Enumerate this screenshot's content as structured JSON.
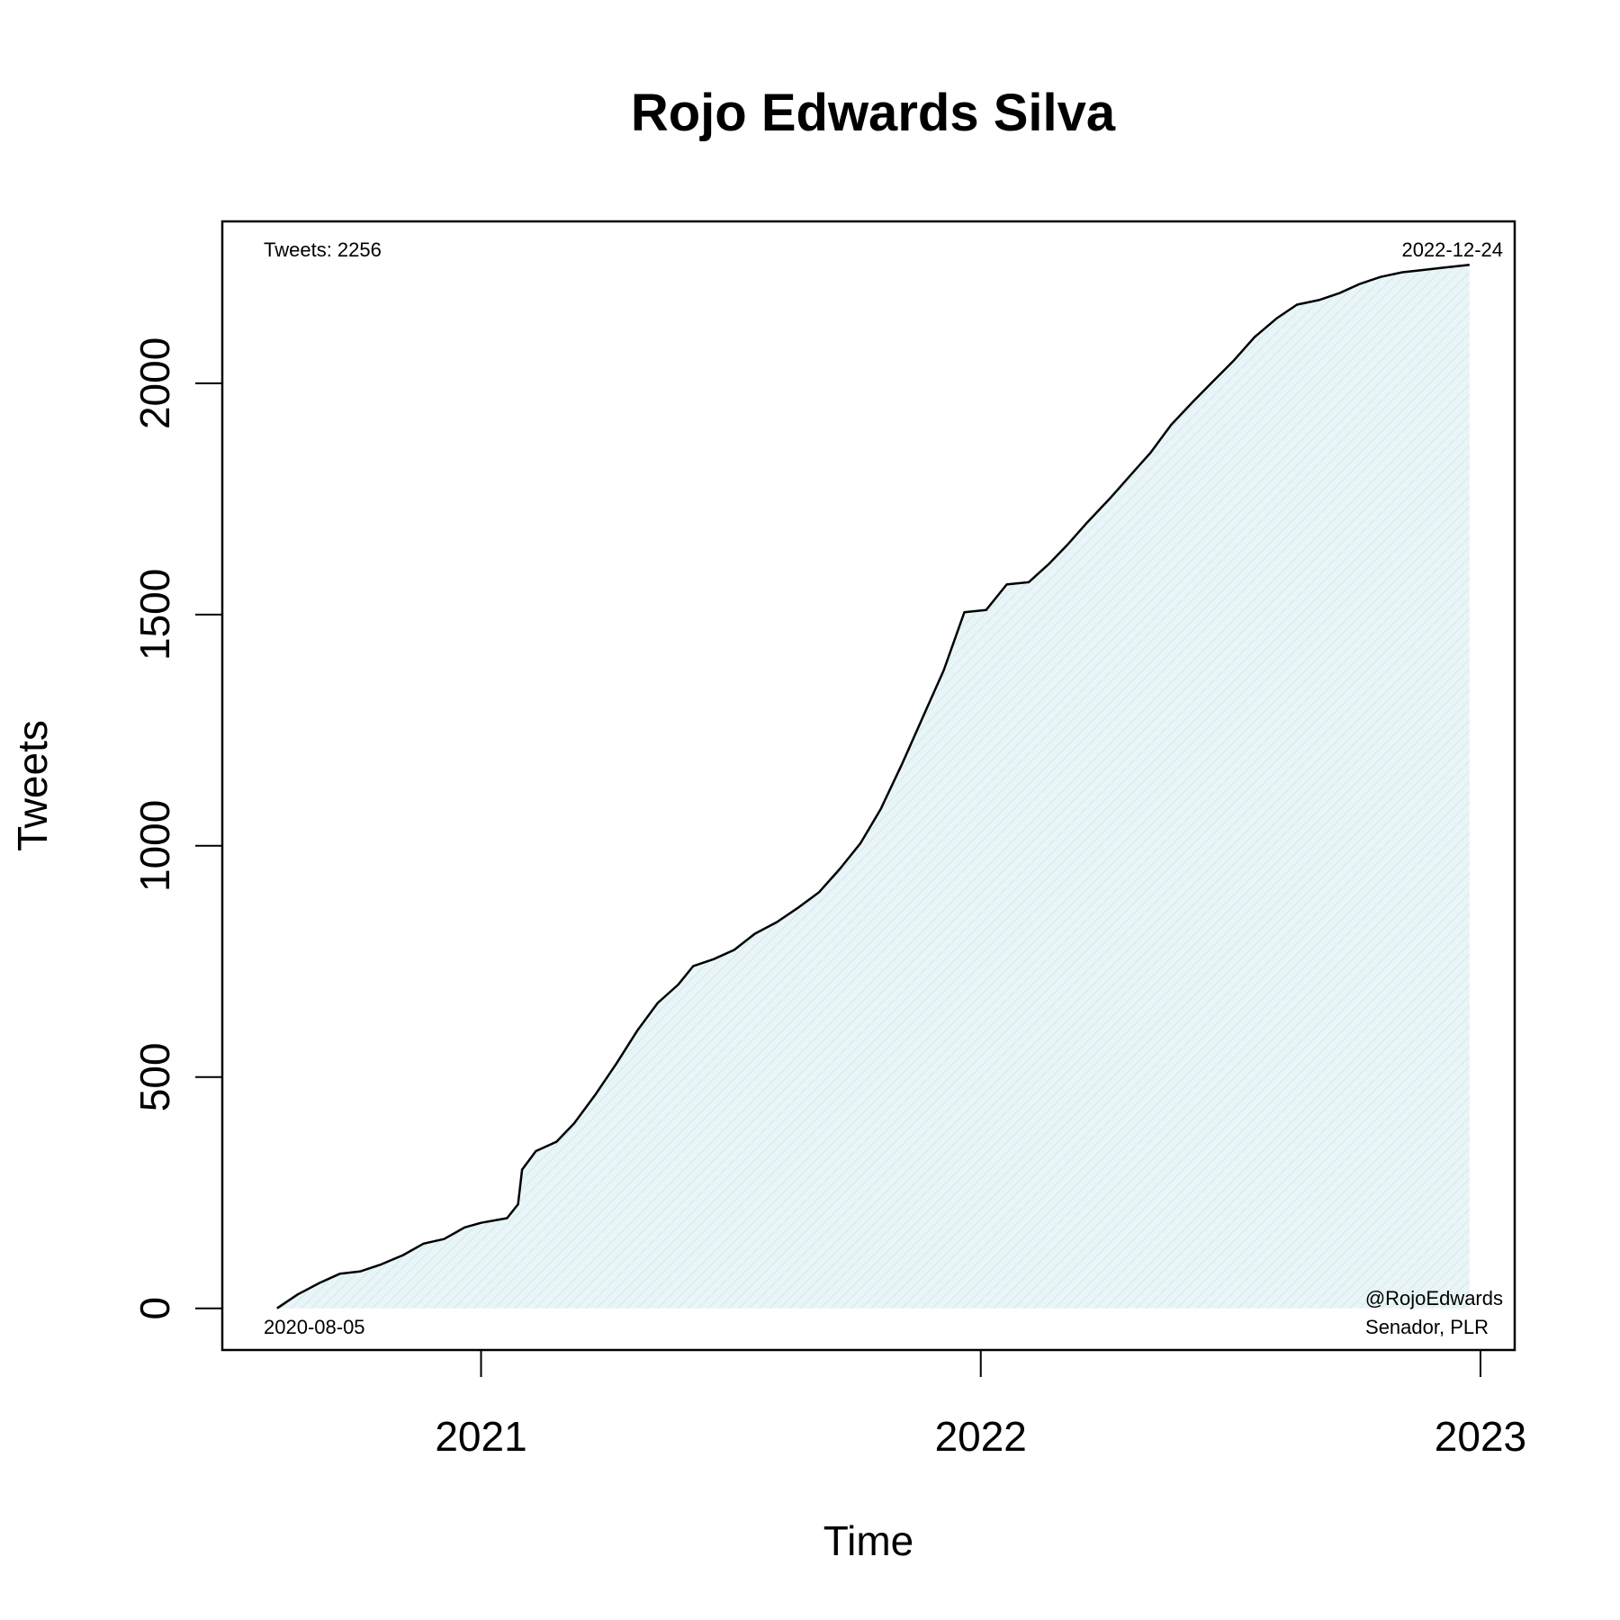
{
  "chart_data": {
    "type": "area",
    "title": "Rojo Edwards Silva",
    "xlabel": "Time",
    "ylabel": "Tweets",
    "xlim": [
      "2020-06-26",
      "2023-01-26"
    ],
    "ylim": [
      -90,
      2350
    ],
    "x_ticks": [
      {
        "date": "2021-01-01",
        "label": "2021"
      },
      {
        "date": "2022-01-01",
        "label": "2022"
      },
      {
        "date": "2023-01-01",
        "label": "2023"
      }
    ],
    "y_ticks": [
      {
        "value": 0,
        "label": "0"
      },
      {
        "value": 500,
        "label": "500"
      },
      {
        "value": 1000,
        "label": "1000"
      },
      {
        "value": 1500,
        "label": "1500"
      },
      {
        "value": 2000,
        "label": "2000"
      }
    ],
    "grid": false,
    "fill_color": "#dceff3",
    "line_color": "#000000",
    "annotations": {
      "top_left": "Tweets: 2256",
      "top_right": "2022-12-24",
      "bottom_left": "2020-08-05",
      "bottom_right_line1": "@RojoEdwards",
      "bottom_right_line2": "Senador, PLR"
    },
    "series": [
      {
        "points": [
          [
            "2020-08-05",
            0
          ],
          [
            "2020-08-20",
            30
          ],
          [
            "2020-09-05",
            55
          ],
          [
            "2020-09-20",
            75
          ],
          [
            "2020-10-05",
            80
          ],
          [
            "2020-10-20",
            95
          ],
          [
            "2020-11-05",
            115
          ],
          [
            "2020-11-20",
            140
          ],
          [
            "2020-12-05",
            150
          ],
          [
            "2020-12-20",
            175
          ],
          [
            "2021-01-01",
            185
          ],
          [
            "2021-01-20",
            195
          ],
          [
            "2021-01-28",
            225
          ],
          [
            "2021-01-31",
            300
          ],
          [
            "2021-02-10",
            340
          ],
          [
            "2021-02-25",
            360
          ],
          [
            "2021-03-10",
            400
          ],
          [
            "2021-03-25",
            460
          ],
          [
            "2021-04-10",
            530
          ],
          [
            "2021-04-25",
            600
          ],
          [
            "2021-05-10",
            660
          ],
          [
            "2021-05-25",
            700
          ],
          [
            "2021-06-05",
            740
          ],
          [
            "2021-06-20",
            755
          ],
          [
            "2021-07-05",
            775
          ],
          [
            "2021-07-20",
            810
          ],
          [
            "2021-08-05",
            835
          ],
          [
            "2021-08-20",
            865
          ],
          [
            "2021-09-05",
            900
          ],
          [
            "2021-09-20",
            950
          ],
          [
            "2021-10-05",
            1005
          ],
          [
            "2021-10-20",
            1080
          ],
          [
            "2021-11-05",
            1180
          ],
          [
            "2021-11-20",
            1280
          ],
          [
            "2021-12-05",
            1380
          ],
          [
            "2021-12-20",
            1505
          ],
          [
            "2022-01-05",
            1510
          ],
          [
            "2022-01-20",
            1565
          ],
          [
            "2022-02-05",
            1570
          ],
          [
            "2022-02-20",
            1610
          ],
          [
            "2022-03-05",
            1650
          ],
          [
            "2022-03-20",
            1700
          ],
          [
            "2022-04-05",
            1750
          ],
          [
            "2022-04-20",
            1800
          ],
          [
            "2022-05-05",
            1850
          ],
          [
            "2022-05-20",
            1910
          ],
          [
            "2022-06-05",
            1960
          ],
          [
            "2022-06-20",
            2005
          ],
          [
            "2022-07-05",
            2050
          ],
          [
            "2022-07-20",
            2100
          ],
          [
            "2022-08-05",
            2140
          ],
          [
            "2022-08-20",
            2170
          ],
          [
            "2022-09-05",
            2180
          ],
          [
            "2022-09-20",
            2195
          ],
          [
            "2022-10-05",
            2215
          ],
          [
            "2022-10-20",
            2230
          ],
          [
            "2022-11-05",
            2240
          ],
          [
            "2022-11-20",
            2245
          ],
          [
            "2022-12-05",
            2250
          ],
          [
            "2022-12-24",
            2256
          ]
        ]
      }
    ]
  }
}
